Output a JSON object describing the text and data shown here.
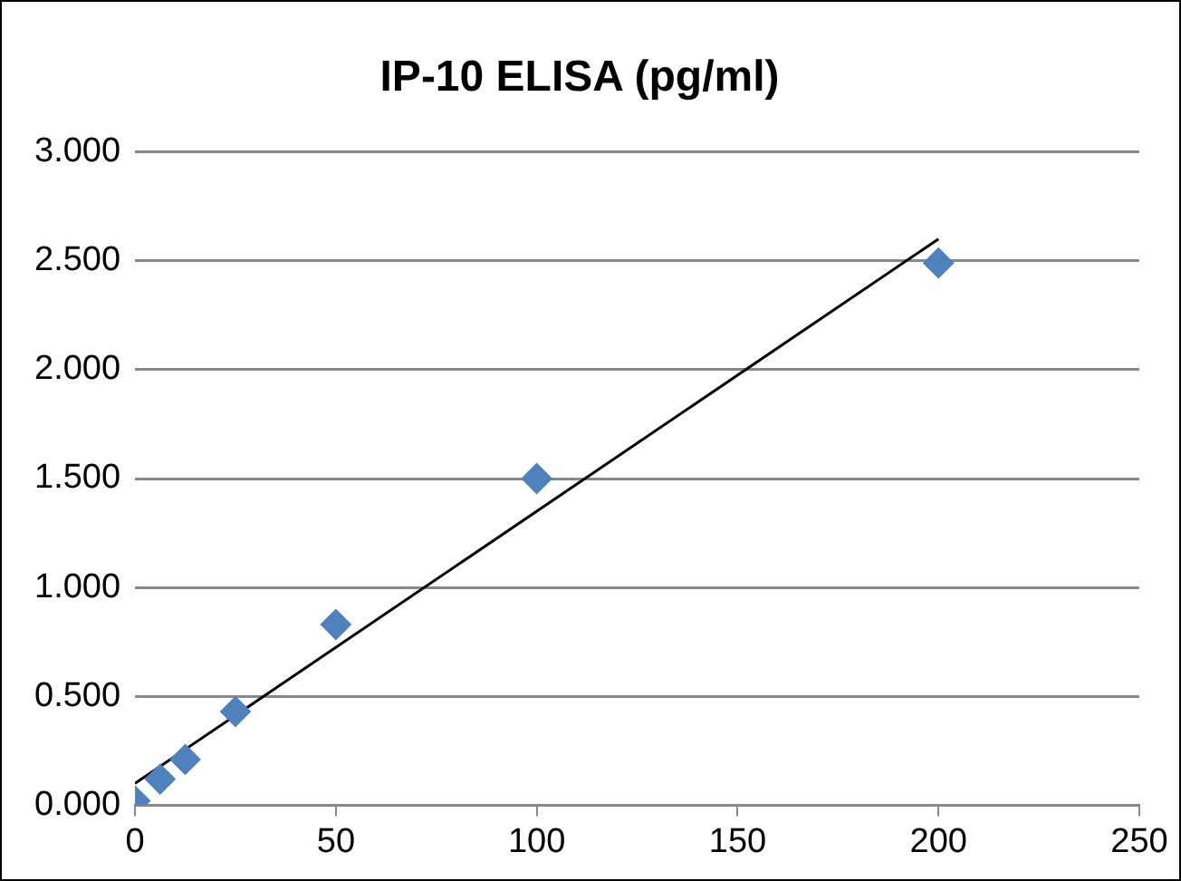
{
  "chart_data": {
    "type": "scatter",
    "title": "IP-10 ELISA (pg/ml)",
    "series": [
      {
        "color": "#4f81bd",
        "marker": "diamond",
        "x": [
          0,
          6.25,
          12.5,
          25,
          50,
          100,
          200
        ],
        "values": [
          0.02,
          0.12,
          0.21,
          0.43,
          0.83,
          1.5,
          2.49
        ]
      },
      {
        "type": "line",
        "color": "#000000",
        "marker": "none",
        "x": [
          0,
          200
        ],
        "values": [
          0.1,
          2.6
        ]
      }
    ],
    "xlim": [
      0,
      250
    ],
    "xticks": [
      0,
      50,
      100,
      150,
      200,
      250
    ],
    "ylim": [
      0,
      3
    ],
    "yticks": [
      {
        "value": 0,
        "label": "0.000"
      },
      {
        "value": 0.5,
        "label": "0.500"
      },
      {
        "value": 1,
        "label": "1.000"
      },
      {
        "value": 1.5,
        "label": "1.500"
      },
      {
        "value": 2,
        "label": "2.000"
      },
      {
        "value": 2.5,
        "label": "2.500"
      },
      {
        "value": 3,
        "label": "3.000"
      }
    ],
    "grid": "y",
    "legend": false
  }
}
